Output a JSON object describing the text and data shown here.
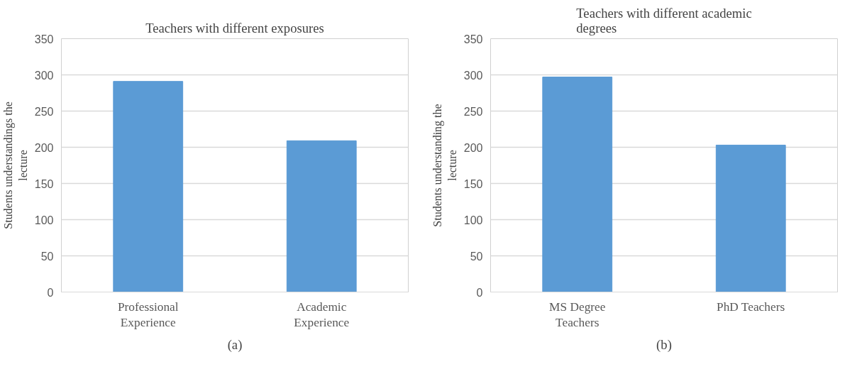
{
  "chart_data": [
    {
      "type": "bar",
      "title": "Teachers with different exposures",
      "ylabel": "Students understandings the lecture",
      "categories": [
        "Professional Experience",
        "Academic Experience"
      ],
      "values": [
        291,
        209
      ],
      "color": "#5b9bd5",
      "ylim": [
        0,
        350
      ],
      "yticks": [
        0,
        50,
        100,
        150,
        200,
        250,
        300,
        350
      ],
      "grid": "y",
      "legend": false,
      "annotations": [
        "(a)"
      ]
    },
    {
      "type": "bar",
      "title": "Teachers with different academic degrees",
      "ylabel": "Students understanding the lecture",
      "categories": [
        "MS Degree Teachers",
        "PhD Teachers"
      ],
      "values": [
        297,
        203
      ],
      "color": "#5b9bd5",
      "ylim": [
        0,
        350
      ],
      "yticks": [
        0,
        50,
        100,
        150,
        200,
        250,
        300,
        350
      ],
      "grid": "y",
      "legend": false,
      "annotations": [
        "(b)"
      ]
    }
  ]
}
